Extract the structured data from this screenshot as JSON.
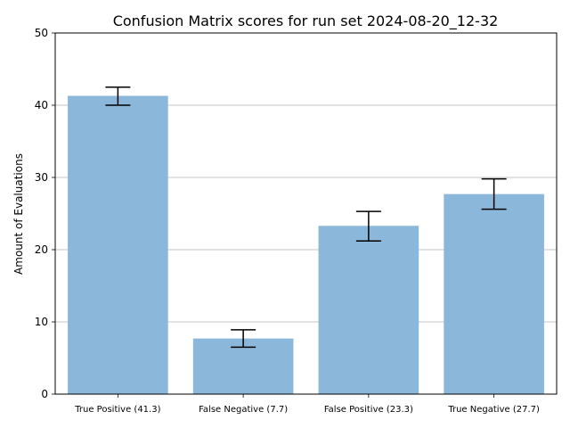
{
  "chart_data": {
    "type": "bar",
    "title": "Confusion Matrix scores for run set 2024-08-20_12-32",
    "xlabel": "",
    "ylabel": "Amount of Evaluations",
    "categories": [
      "True Positive (41.3)",
      "False Negative (7.7)",
      "False Positive (23.3)",
      "True Negative (27.7)"
    ],
    "values": [
      41.3,
      7.7,
      23.3,
      27.7
    ],
    "error_low": [
      40.0,
      6.5,
      21.2,
      25.6
    ],
    "error_high": [
      42.5,
      8.9,
      25.3,
      29.8
    ],
    "ylim": [
      0,
      50
    ],
    "yticks": [
      "0",
      "10",
      "20",
      "30",
      "40",
      "50"
    ],
    "grid": "horizontal",
    "bar_color": "#8bb8da",
    "grid_color": "#b0b0b0"
  }
}
